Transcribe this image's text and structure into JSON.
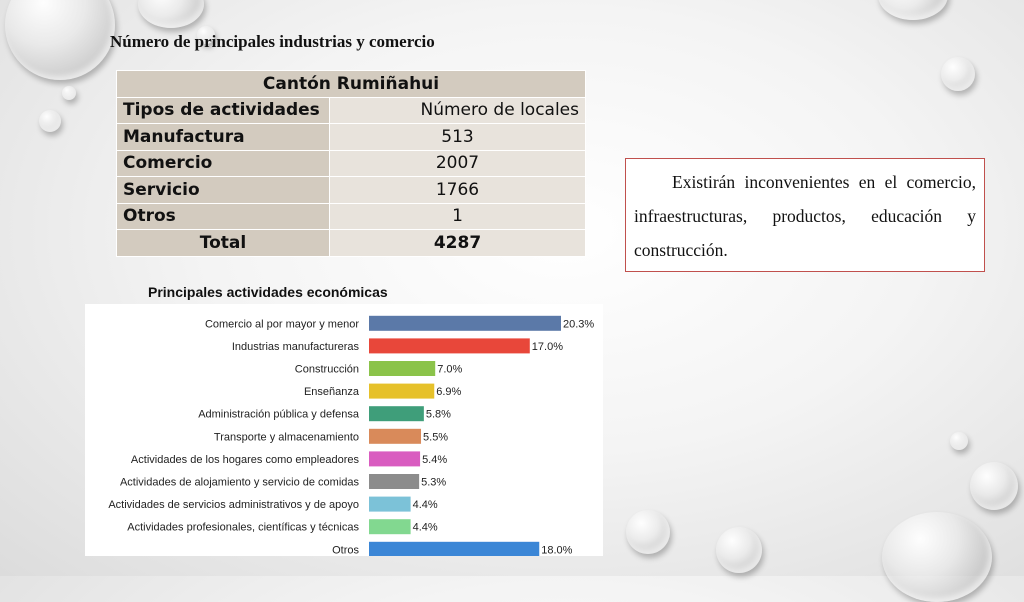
{
  "page": {
    "title": "Número de principales industrias y comercio"
  },
  "table": {
    "header": "Cantón Rumiñahui",
    "col_label": "Tipos de actividades",
    "col_value": "Número de locales",
    "rows": [
      {
        "label": "Manufactura",
        "value": "513"
      },
      {
        "label": "Comercio",
        "value": "2007"
      },
      {
        "label": "Servicio",
        "value": "1766"
      },
      {
        "label": "Otros",
        "value": "1"
      }
    ],
    "total_label": "Total",
    "total_value": "4287"
  },
  "note": {
    "text": "Existirán inconvenientes en el comercio, infraestructuras, productos, educación y construcción."
  },
  "chart_data": {
    "type": "bar",
    "orientation": "horizontal",
    "title": "Principales actividades económicas",
    "xlabel": "",
    "ylabel": "",
    "grid": false,
    "legend": "none",
    "categories": [
      "Comercio al por mayor y menor",
      "Industrias manufactureras",
      "Construcción",
      "Enseñanza",
      "Administración pública y defensa",
      "Transporte y almacenamiento",
      "Actividades de los hogares como empleadores",
      "Actividades de alojamiento y servicio de comidas",
      "Actividades de servicios administrativos y de apoyo",
      "Actividades profesionales, científicas y técnicas",
      "Otros"
    ],
    "values": [
      20.3,
      17.0,
      7.0,
      6.9,
      5.8,
      5.5,
      5.4,
      5.3,
      4.4,
      4.4,
      18.0
    ],
    "value_labels": [
      "20.3%",
      "17.0%",
      "7.0%",
      "6.9%",
      "5.8%",
      "5.5%",
      "5.4%",
      "5.3%",
      "4.4%",
      "4.4%",
      "18.0%"
    ],
    "colors": [
      "#5b79a8",
      "#e8473a",
      "#8bc34a",
      "#e6c12a",
      "#3f9e7a",
      "#d98a5a",
      "#d95cc0",
      "#8c8c8c",
      "#7cc2d8",
      "#82d890",
      "#3b86d6"
    ],
    "xlim": [
      0,
      20.3
    ]
  }
}
